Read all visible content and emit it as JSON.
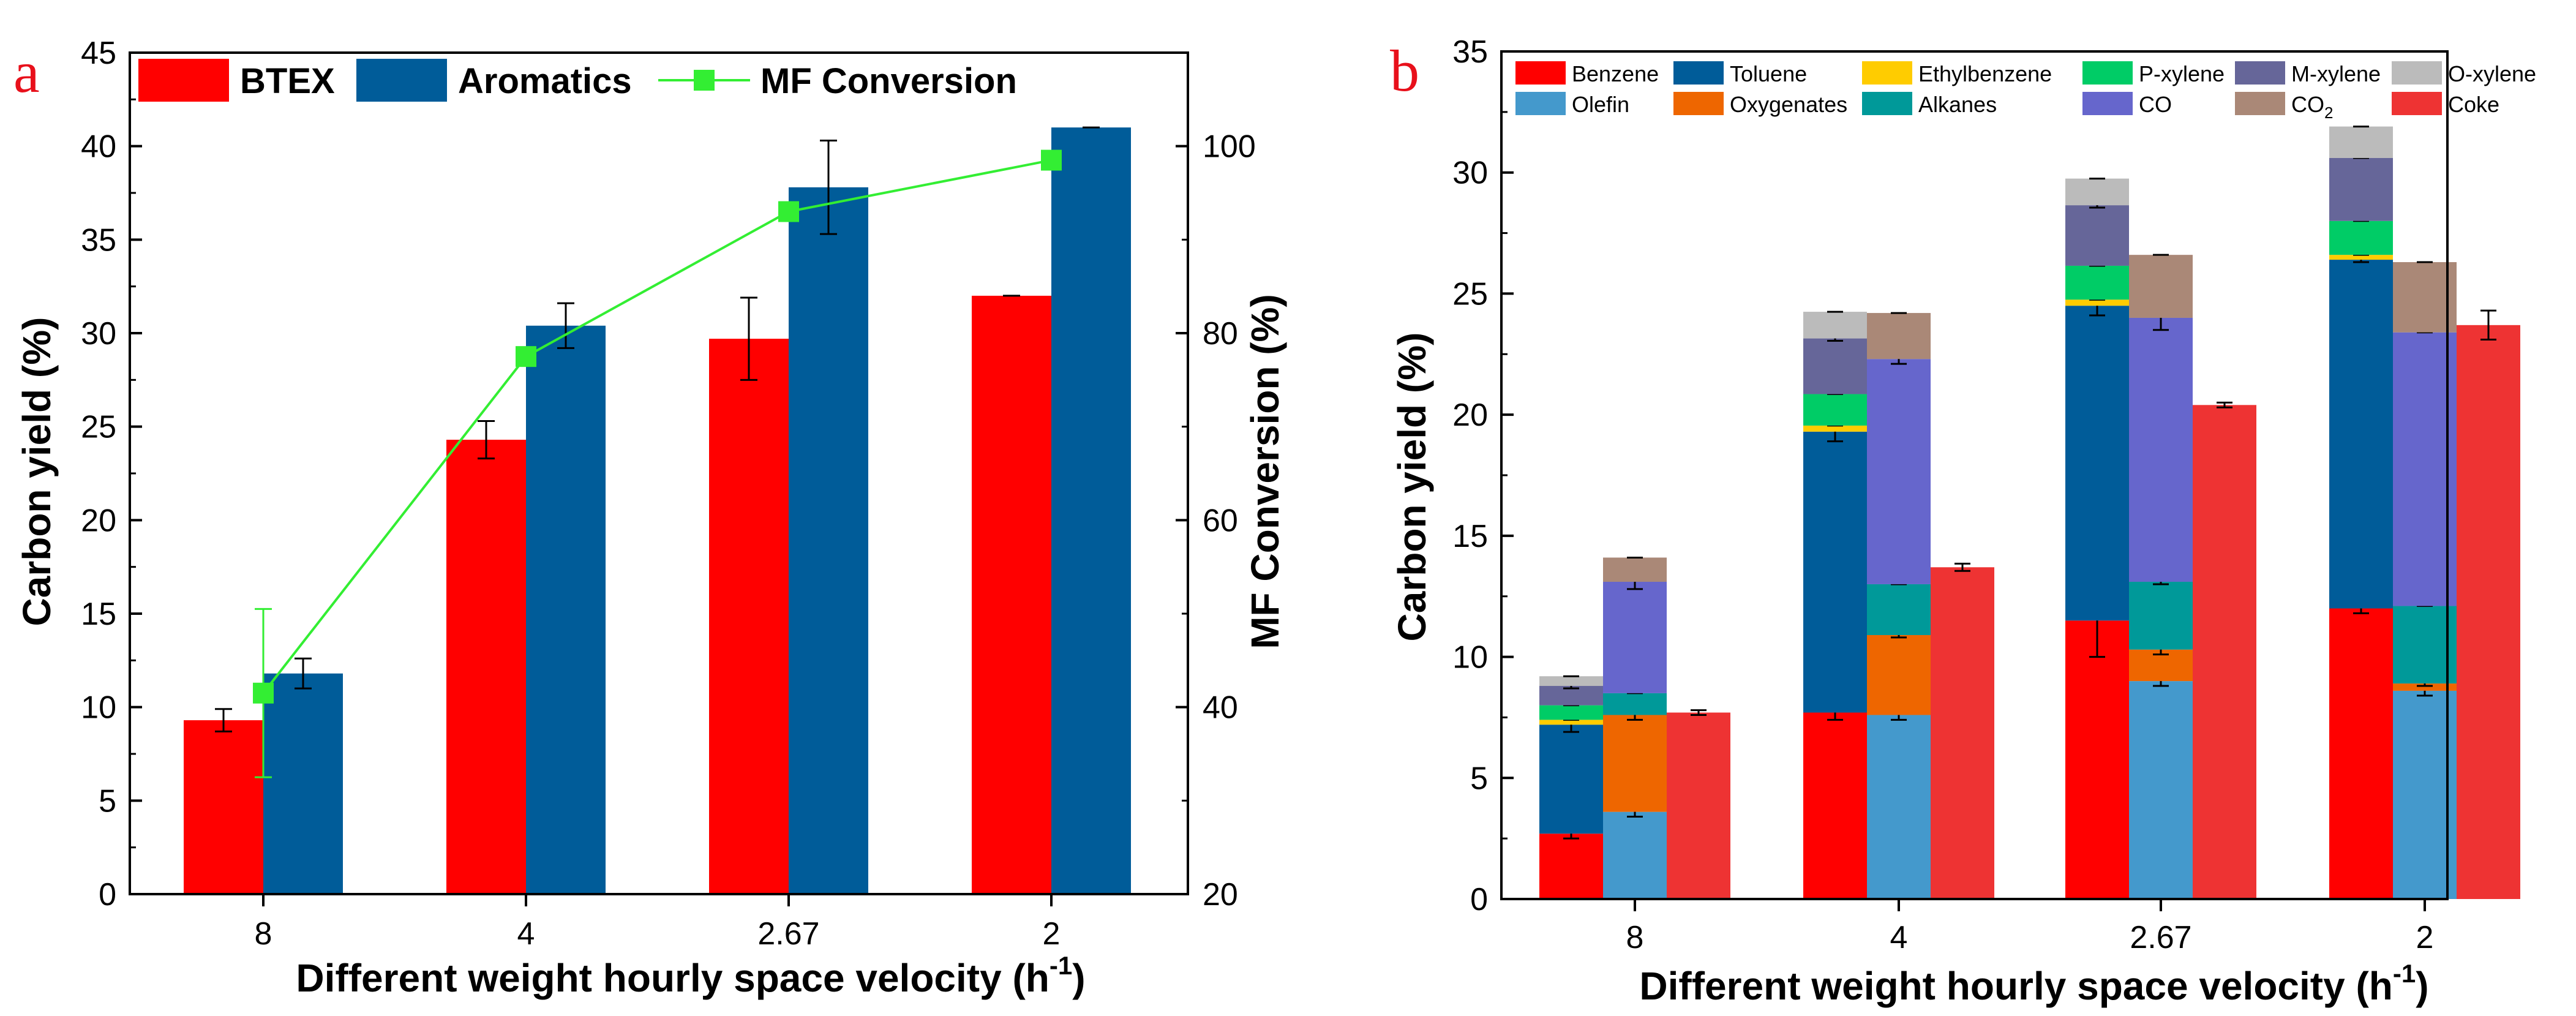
{
  "colors": {
    "btex": "#ff0000",
    "aromatics": "#005c99",
    "mf": "#33ee33",
    "benzene": "#ff0000",
    "toluene": "#005c99",
    "ethylbenzene": "#ffcc00",
    "pxylene": "#00cc66",
    "mxylene": "#666699",
    "oxylene": "#bbbbbb",
    "olefin": "#4499cc",
    "oxygenates": "#ee6600",
    "alkanes": "#009999",
    "co": "#6666cc",
    "co2": "#aa8877",
    "coke": "#ee3333",
    "panel_label": "#e8101b"
  },
  "chart_data": [
    {
      "panel": "a",
      "type": "bar",
      "xlabel": "Different weight hourly space velocity (h",
      "xlabel_sup": "-1",
      "xlabel_suffix": ")",
      "ylabel": "Carbon yield (%)",
      "ylabel_right": "MF Conversion (%)",
      "ylim": [
        0,
        45
      ],
      "ylim_right": [
        20,
        110
      ],
      "yticks": [
        "0",
        "5",
        "10",
        "15",
        "20",
        "25",
        "30",
        "35",
        "40",
        "45"
      ],
      "yticks_right": [
        "20",
        "40",
        "60",
        "80",
        "100"
      ],
      "categories": [
        "8",
        "4",
        "2.67",
        "2"
      ],
      "series": [
        {
          "name": "BTEX",
          "kind": "bar",
          "values": [
            9.3,
            24.3,
            29.7,
            32.0
          ],
          "errors": [
            0.6,
            1.0,
            2.2,
            0.0
          ]
        },
        {
          "name": "Aromatics",
          "kind": "bar",
          "values": [
            11.8,
            30.4,
            37.8,
            41.0
          ],
          "errors": [
            0.8,
            1.2,
            2.5,
            0.0
          ]
        },
        {
          "name": "MF Conversion",
          "kind": "line",
          "axis": "right",
          "values": [
            41.5,
            77.5,
            93.0,
            98.5
          ],
          "errors": [
            9.0,
            0.0,
            0.0,
            0.0
          ]
        }
      ]
    },
    {
      "panel": "b",
      "type": "stacked-bar",
      "xlabel": "Different weight hourly space velocity (h",
      "xlabel_sup": "-1",
      "xlabel_suffix": ")",
      "ylabel": "Carbon yield (%)",
      "ylim": [
        0,
        35
      ],
      "yticks": [
        "0",
        "5",
        "10",
        "15",
        "20",
        "25",
        "30",
        "35"
      ],
      "categories": [
        "8",
        "4",
        "2.67",
        "2"
      ],
      "legend": [
        {
          "key": "benzene",
          "label": "Benzene"
        },
        {
          "key": "toluene",
          "label": "Toluene"
        },
        {
          "key": "ethylbenzene",
          "label": "Ethylbenzene"
        },
        {
          "key": "pxylene",
          "label": "P-xylene"
        },
        {
          "key": "mxylene",
          "label": "M-xylene"
        },
        {
          "key": "oxylene",
          "label": "O-xylene"
        },
        {
          "key": "olefin",
          "label": "Olefin"
        },
        {
          "key": "oxygenates",
          "label": "Oxygenates"
        },
        {
          "key": "alkanes",
          "label": "Alkanes"
        },
        {
          "key": "co",
          "label": "CO"
        },
        {
          "key": "co2",
          "label": "CO",
          "sub": "2"
        },
        {
          "key": "coke",
          "label": "Coke"
        }
      ],
      "stacks": [
        {
          "name": "aromatics",
          "components": [
            {
              "key": "benzene",
              "values": [
                2.7,
                7.7,
                11.5,
                12.0
              ],
              "errors": [
                0.2,
                0.3,
                1.5,
                0.2
              ]
            },
            {
              "key": "toluene",
              "values": [
                4.5,
                11.6,
                13.0,
                14.4
              ],
              "errors": [
                0.3,
                0.4,
                0.4,
                0.1
              ]
            },
            {
              "key": "ethylbenzene",
              "values": [
                0.2,
                0.25,
                0.25,
                0.2
              ],
              "errors": [
                0,
                0,
                0,
                0
              ]
            },
            {
              "key": "pxylene",
              "values": [
                0.6,
                1.3,
                1.4,
                1.4
              ],
              "errors": [
                0,
                0,
                0,
                0
              ]
            },
            {
              "key": "mxylene",
              "values": [
                0.8,
                2.3,
                2.5,
                2.6
              ],
              "errors": [
                0.1,
                0.1,
                0.1,
                0.05
              ]
            },
            {
              "key": "oxylene",
              "values": [
                0.4,
                1.1,
                1.1,
                1.3
              ],
              "errors": [
                0.05,
                0.05,
                0.05,
                0.05
              ]
            }
          ]
        },
        {
          "name": "others",
          "components": [
            {
              "key": "olefin",
              "values": [
                3.6,
                7.6,
                9.0,
                8.6
              ],
              "errors": [
                0.2,
                0.2,
                0.2,
                0.2
              ]
            },
            {
              "key": "oxygenates",
              "values": [
                4.0,
                3.3,
                1.3,
                0.3
              ],
              "errors": [
                0.2,
                0.1,
                0.2,
                0.1
              ]
            },
            {
              "key": "alkanes",
              "values": [
                0.9,
                2.1,
                2.8,
                3.2
              ],
              "errors": [
                0.05,
                0.05,
                0.1,
                0.05
              ]
            },
            {
              "key": "co",
              "values": [
                4.6,
                9.3,
                10.9,
                11.3
              ],
              "errors": [
                0.3,
                0.2,
                0.5,
                0.05
              ]
            },
            {
              "key": "co2",
              "values": [
                1.0,
                1.9,
                2.6,
                2.9
              ],
              "errors": [
                0.05,
                0.05,
                0.05,
                0.05
              ]
            }
          ]
        },
        {
          "name": "coke",
          "components": [
            {
              "key": "coke",
              "values": [
                7.7,
                13.7,
                20.4,
                23.7
              ],
              "errors": [
                0.1,
                0.15,
                0.1,
                0.6
              ]
            }
          ]
        }
      ]
    }
  ]
}
